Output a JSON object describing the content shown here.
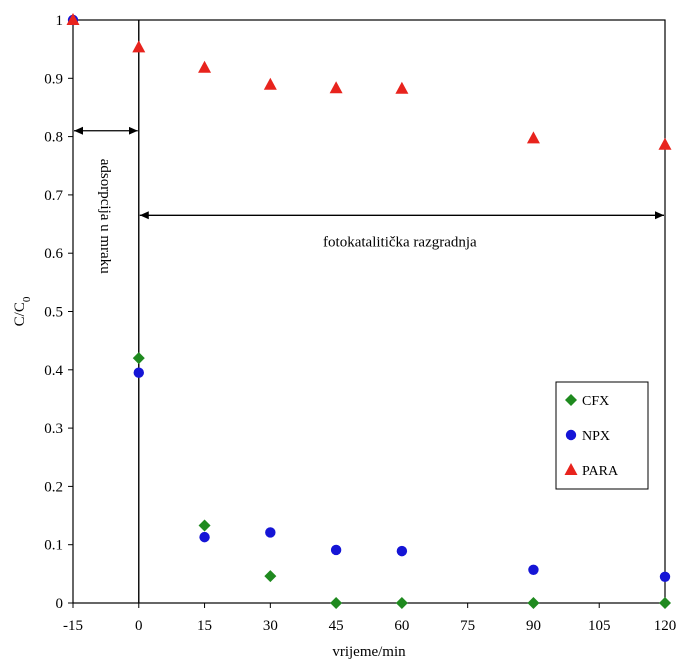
{
  "chart_data": {
    "type": "scatter",
    "title": "",
    "xlabel": "vrijeme/min",
    "ylabel": "C/C",
    "ylabel_subscript": "0",
    "xlim": [
      -15,
      120
    ],
    "ylim": [
      0,
      1
    ],
    "x_ticks": [
      -15,
      0,
      15,
      30,
      45,
      60,
      75,
      90,
      105,
      120
    ],
    "y_ticks": [
      0,
      0.1,
      0.2,
      0.3,
      0.4,
      0.5,
      0.6,
      0.7,
      0.8,
      0.9,
      1
    ],
    "grid": false,
    "legend_position": "right",
    "series": [
      {
        "name": "CFX",
        "marker": "diamond",
        "color": "#1f8a1f",
        "points": [
          [
            0,
            0.42
          ],
          [
            15,
            0.133
          ],
          [
            30,
            0.046
          ],
          [
            45,
            0
          ],
          [
            60,
            0
          ],
          [
            90,
            0
          ],
          [
            120,
            0
          ]
        ]
      },
      {
        "name": "NPX",
        "marker": "circle",
        "color": "#1515d6",
        "points": [
          [
            -15,
            1.0
          ],
          [
            0,
            0.395
          ],
          [
            15,
            0.113
          ],
          [
            30,
            0.121
          ],
          [
            45,
            0.091
          ],
          [
            60,
            0.089
          ],
          [
            90,
            0.057
          ],
          [
            120,
            0.045
          ]
        ]
      },
      {
        "name": "PARA",
        "marker": "triangle",
        "color": "#e8231d",
        "points": [
          [
            -15,
            1.0
          ],
          [
            0,
            0.953
          ],
          [
            15,
            0.918
          ],
          [
            30,
            0.889
          ],
          [
            45,
            0.883
          ],
          [
            60,
            0.882
          ],
          [
            90,
            0.797
          ],
          [
            120,
            0.786
          ]
        ]
      }
    ],
    "annotations": {
      "dark_phase_label": "adsorpcija u mraku",
      "dark_phase_range": [
        -15,
        0
      ],
      "dark_phase_y": 0.81,
      "photo_phase_label": "fotokatalitička razgradnja",
      "photo_phase_range": [
        0,
        120
      ],
      "photo_phase_y": 0.665,
      "divider_x": 0
    }
  }
}
